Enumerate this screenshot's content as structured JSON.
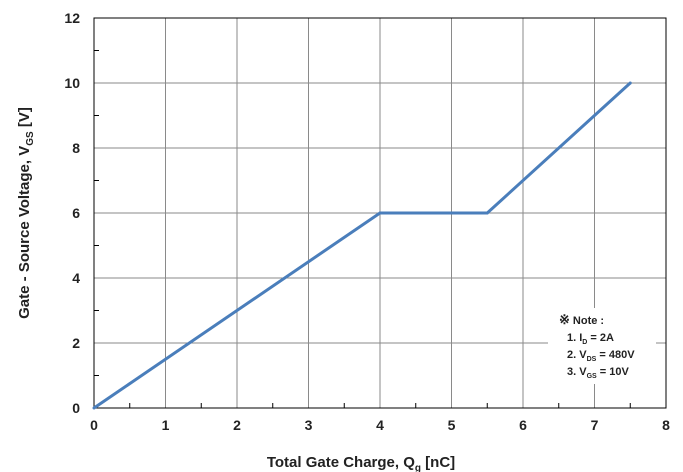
{
  "chart_data": {
    "type": "line",
    "title": "",
    "xlabel": {
      "main": "Total Gate Charge, Q",
      "sub": "g",
      "unit": " [nC]"
    },
    "ylabel": {
      "main": "Gate - Source Voltage, V",
      "sub": "GS",
      "unit": " [V]"
    },
    "xlim": [
      0,
      8
    ],
    "ylim": [
      0,
      12
    ],
    "xticks": [
      0,
      1,
      2,
      3,
      4,
      5,
      6,
      7,
      8
    ],
    "yticks": [
      0,
      2,
      4,
      6,
      8,
      10,
      12
    ],
    "grid": true,
    "series": [
      {
        "color": "#4a7ebb",
        "x": [
          0,
          4,
          5.5,
          7.5
        ],
        "y": [
          0,
          6,
          6,
          10
        ]
      }
    ],
    "note": {
      "header_symbol": "※",
      "header": "Note :",
      "lines": [
        {
          "prefix": "1. I",
          "sub": "D",
          "suffix": " = 2A"
        },
        {
          "prefix": "2. V",
          "sub": "DS",
          "suffix": " = 480V"
        },
        {
          "prefix": "3. V",
          "sub": "GS",
          "suffix": " = 10V"
        }
      ]
    }
  }
}
